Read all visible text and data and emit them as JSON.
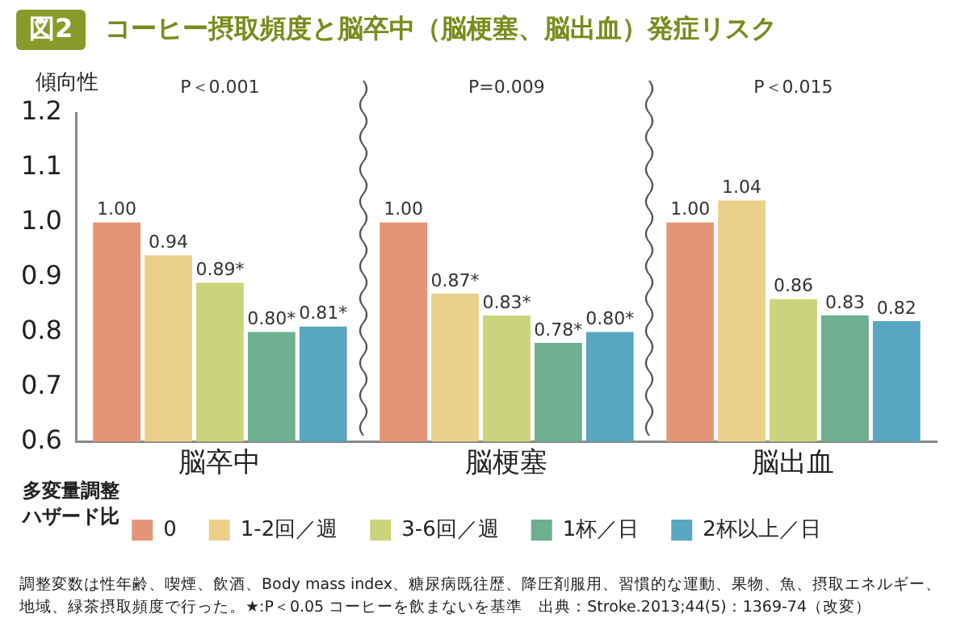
{
  "chart_data": {
    "type": "bar",
    "title": "図2",
    "subtitle": "コーヒー摂取頻度と脳卒中（脳梗塞、脳出血）発症リスク",
    "ylabel": "多変量調整ハザード比",
    "categories": [
      "脳卒中",
      "脳梗塞",
      "脳出血"
    ],
    "series": [
      {
        "name": "0",
        "color": "#e39677",
        "values": [
          1.0,
          1.0,
          1.0
        ],
        "value_labels": [
          "1.00",
          "1.00",
          "1.00"
        ]
      },
      {
        "name": "1-2回／週",
        "color": "#ebd08a",
        "values": [
          0.94,
          0.87,
          1.04
        ],
        "value_labels": [
          "0.94",
          "0.87*",
          "1.04"
        ]
      },
      {
        "name": "3-6回／週",
        "color": "#cbd47c",
        "values": [
          0.89,
          0.83,
          0.86
        ],
        "value_labels": [
          "0.89*",
          "0.83*",
          "0.86"
        ]
      },
      {
        "name": "1杯／日",
        "color": "#6daf8f",
        "values": [
          0.8,
          0.78,
          0.83
        ],
        "value_labels": [
          "0.80*",
          "0.78*",
          "0.83"
        ]
      },
      {
        "name": "2杯以上／日",
        "color": "#58a6c1",
        "values": [
          0.81,
          0.8,
          0.82
        ],
        "value_labels": [
          "0.81*",
          "0.80*",
          "0.82"
        ]
      }
    ],
    "ylim": [
      0.6,
      1.2
    ],
    "yticks": [
      0.6,
      0.7,
      0.8,
      0.9,
      {
        "value": 1,
        "label": "1.0"
      },
      1.1,
      1.2
    ],
    "grid": false,
    "legend": "bottom",
    "annotations": [
      "傾向性",
      "P＜0.001",
      "P=0.009",
      "P＜0.015",
      "調整変数は性年齢、喫煙、飲酒、Body mass index、糖尿病既往歴、降圧剤服用、習慣的な運動、果物、魚、摂取エネルギー、地域、緑茶摂取頻度で行った。★:P＜0.05 コーヒーを飲まないを基準　出典：Stroke.2013;44(5)：1369-74（改変）"
    ]
  }
}
